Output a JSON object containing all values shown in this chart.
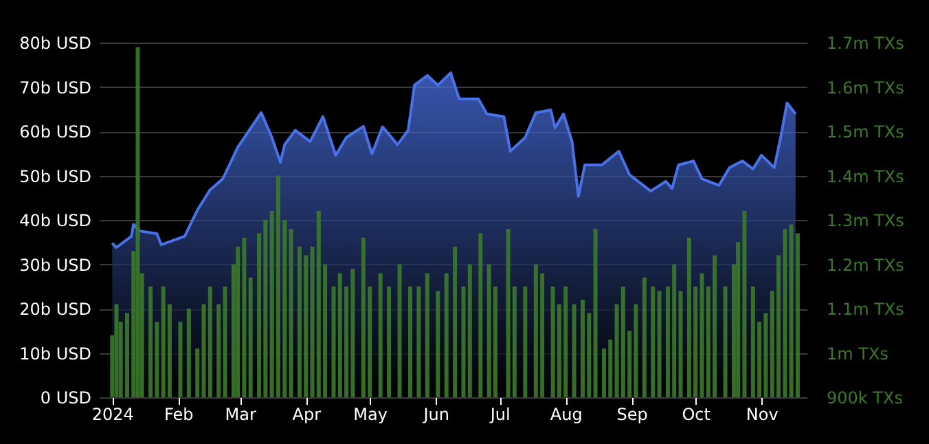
{
  "chart_data": {
    "type": "area",
    "grid": "y",
    "xlim": [
      "2023-12-29",
      "2024-11-19"
    ],
    "xticks": [
      {
        "value": "2024-01-01",
        "label": "2024"
      },
      {
        "value": "2024-02-01",
        "label": "Feb"
      },
      {
        "value": "2024-03-01",
        "label": "Mar"
      },
      {
        "value": "2024-04-01",
        "label": "Apr"
      },
      {
        "value": "2024-05-01",
        "label": "May"
      },
      {
        "value": "2024-06-01",
        "label": "Jun"
      },
      {
        "value": "2024-07-01",
        "label": "Jul"
      },
      {
        "value": "2024-08-01",
        "label": "Aug"
      },
      {
        "value": "2024-09-01",
        "label": "Sep"
      },
      {
        "value": "2024-10-01",
        "label": "Oct"
      },
      {
        "value": "2024-11-01",
        "label": "Nov"
      }
    ],
    "ylim": [
      0,
      80
    ],
    "yticks": [
      {
        "value": 0,
        "label": "0 USD"
      },
      {
        "value": 10,
        "label": "10b USD"
      },
      {
        "value": 20,
        "label": "20b USD"
      },
      {
        "value": 30,
        "label": "30b USD"
      },
      {
        "value": 40,
        "label": "40b USD"
      },
      {
        "value": 50,
        "label": "50b USD"
      },
      {
        "value": 60,
        "label": "60b USD"
      },
      {
        "value": 70,
        "label": "70b USD"
      },
      {
        "value": 80,
        "label": "80b USD"
      }
    ],
    "y2lim": [
      900000,
      1700000
    ],
    "y2ticks": [
      {
        "value": 900000,
        "label": "900k TXs"
      },
      {
        "value": 1000000,
        "label": "1m TXs"
      },
      {
        "value": 1100000,
        "label": "1.1m TXs"
      },
      {
        "value": 1200000,
        "label": "1.2m TXs"
      },
      {
        "value": 1300000,
        "label": "1.3m TXs"
      },
      {
        "value": 1400000,
        "label": "1.4m TXs"
      },
      {
        "value": 1500000,
        "label": "1.5m TXs"
      },
      {
        "value": 1600000,
        "label": "1.6m TXs"
      },
      {
        "value": 1700000,
        "label": "1.7m TXs"
      }
    ],
    "series": [
      {
        "color": "#4a72e8",
        "x": [
          "2024-01-01",
          "2024-01-03",
          "2024-01-10",
          "2024-01-11",
          "2024-01-14",
          "2024-01-22",
          "2024-01-24",
          "2024-02-04",
          "2024-02-10",
          "2024-02-16",
          "2024-02-22",
          "2024-02-29",
          "2024-03-11",
          "2024-03-16",
          "2024-03-20",
          "2024-03-22",
          "2024-03-27",
          "2024-04-03",
          "2024-04-09",
          "2024-04-15",
          "2024-04-20",
          "2024-04-28",
          "2024-05-02",
          "2024-05-07",
          "2024-05-14",
          "2024-05-19",
          "2024-05-22",
          "2024-05-28",
          "2024-06-02",
          "2024-06-08",
          "2024-06-12",
          "2024-06-21",
          "2024-06-25",
          "2024-07-03",
          "2024-07-06",
          "2024-07-13",
          "2024-07-18",
          "2024-07-25",
          "2024-07-27",
          "2024-07-31",
          "2024-08-04",
          "2024-08-07",
          "2024-08-10",
          "2024-08-18",
          "2024-08-26",
          "2024-08-31",
          "2024-09-10",
          "2024-09-17",
          "2024-09-20",
          "2024-09-23",
          "2024-09-30",
          "2024-10-04",
          "2024-10-12",
          "2024-10-17",
          "2024-10-23",
          "2024-10-28",
          "2024-11-01",
          "2024-11-07",
          "2024-11-10",
          "2024-11-13",
          "2024-11-17"
        ],
        "values": [
          34.8,
          33.8,
          36.3,
          39,
          37.5,
          36.9,
          34.4,
          36.3,
          42.2,
          46.8,
          49.3,
          56.4,
          64.2,
          58.6,
          53,
          57,
          60.2,
          57.7,
          63.3,
          54.6,
          58.6,
          61.1,
          54.9,
          61,
          57,
          60.2,
          70.4,
          72.6,
          70.4,
          73.2,
          67.3,
          67.3,
          63.9,
          63.3,
          55.5,
          58.6,
          64.2,
          64.8,
          60.8,
          63.9,
          57.7,
          45.3,
          52.4,
          52.4,
          55.5,
          50.2,
          46.5,
          48.7,
          47.1,
          52.4,
          53.3,
          49.3,
          47.8,
          51.8,
          53.3,
          51.5,
          54.6,
          51.8,
          58.6,
          66.4,
          63.9
        ]
      },
      {
        "type": "bar",
        "axis": "y2",
        "color": "#3b7a2a",
        "x": [
          "2024-01-01",
          "2024-01-03",
          "2024-01-05",
          "2024-01-08",
          "2024-01-11",
          "2024-01-13",
          "2024-01-15",
          "2024-01-19",
          "2024-01-22",
          "2024-01-25",
          "2024-01-28",
          "2024-02-02",
          "2024-02-06",
          "2024-02-10",
          "2024-02-13",
          "2024-02-16",
          "2024-02-20",
          "2024-02-23",
          "2024-02-27",
          "2024-02-29",
          "2024-03-03",
          "2024-03-06",
          "2024-03-10",
          "2024-03-13",
          "2024-03-16",
          "2024-03-19",
          "2024-03-22",
          "2024-03-25",
          "2024-03-29",
          "2024-04-01",
          "2024-04-04",
          "2024-04-07",
          "2024-04-10",
          "2024-04-14",
          "2024-04-17",
          "2024-04-20",
          "2024-04-23",
          "2024-04-28",
          "2024-05-01",
          "2024-05-06",
          "2024-05-10",
          "2024-05-15",
          "2024-05-20",
          "2024-05-24",
          "2024-05-28",
          "2024-06-02",
          "2024-06-06",
          "2024-06-10",
          "2024-06-14",
          "2024-06-17",
          "2024-06-22",
          "2024-06-26",
          "2024-06-29",
          "2024-07-05",
          "2024-07-08",
          "2024-07-13",
          "2024-07-18",
          "2024-07-21",
          "2024-07-26",
          "2024-07-29",
          "2024-08-01",
          "2024-08-05",
          "2024-08-09",
          "2024-08-12",
          "2024-08-15",
          "2024-08-19",
          "2024-08-22",
          "2024-08-25",
          "2024-08-28",
          "2024-08-31",
          "2024-09-03",
          "2024-09-07",
          "2024-09-11",
          "2024-09-14",
          "2024-09-18",
          "2024-09-21",
          "2024-09-24",
          "2024-09-28",
          "2024-10-01",
          "2024-10-04",
          "2024-10-07",
          "2024-10-10",
          "2024-10-15",
          "2024-10-19",
          "2024-10-21",
          "2024-10-24",
          "2024-10-28",
          "2024-10-31",
          "2024-11-03",
          "2024-11-06",
          "2024-11-09",
          "2024-11-12",
          "2024-11-15",
          "2024-11-18"
        ],
        "values": [
          1040000,
          1110000,
          1070000,
          1090000,
          1230000,
          1690000,
          1180000,
          1150000,
          1070000,
          1150000,
          1110000,
          1070000,
          1100000,
          1010000,
          1110000,
          1150000,
          1110000,
          1150000,
          1200000,
          1240000,
          1260000,
          1170000,
          1270000,
          1300000,
          1320000,
          1400000,
          1300000,
          1280000,
          1240000,
          1220000,
          1240000,
          1320000,
          1200000,
          1150000,
          1180000,
          1150000,
          1190000,
          1260000,
          1150000,
          1180000,
          1150000,
          1200000,
          1150000,
          1150000,
          1180000,
          1140000,
          1180000,
          1240000,
          1150000,
          1200000,
          1270000,
          1200000,
          1150000,
          1280000,
          1150000,
          1150000,
          1200000,
          1180000,
          1150000,
          1110000,
          1150000,
          1110000,
          1120000,
          1090000,
          1280000,
          1010000,
          1030000,
          1110000,
          1150000,
          1050000,
          1110000,
          1170000,
          1150000,
          1140000,
          1150000,
          1200000,
          1140000,
          1260000,
          1150000,
          1180000,
          1150000,
          1220000,
          1150000,
          1200000,
          1250000,
          1320000,
          1150000,
          1070000,
          1090000,
          1140000,
          1220000,
          1280000,
          1290000,
          1270000
        ]
      }
    ]
  }
}
